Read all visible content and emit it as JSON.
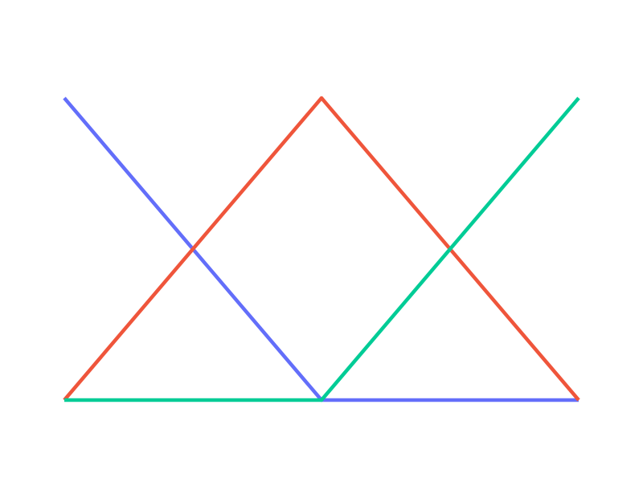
{
  "chart_data": {
    "type": "line",
    "x": [
      0,
      1,
      2
    ],
    "xlim": [
      0,
      2
    ],
    "ylim": [
      0,
      1
    ],
    "grid": false,
    "axes_visible": false,
    "legend": "none",
    "series": [
      {
        "color": "#636efa",
        "values": [
          1,
          0,
          0
        ]
      },
      {
        "color": "#ef553b",
        "values": [
          0,
          1,
          0
        ]
      },
      {
        "color": "#00cc96",
        "values": [
          0,
          0,
          1
        ]
      }
    ]
  }
}
